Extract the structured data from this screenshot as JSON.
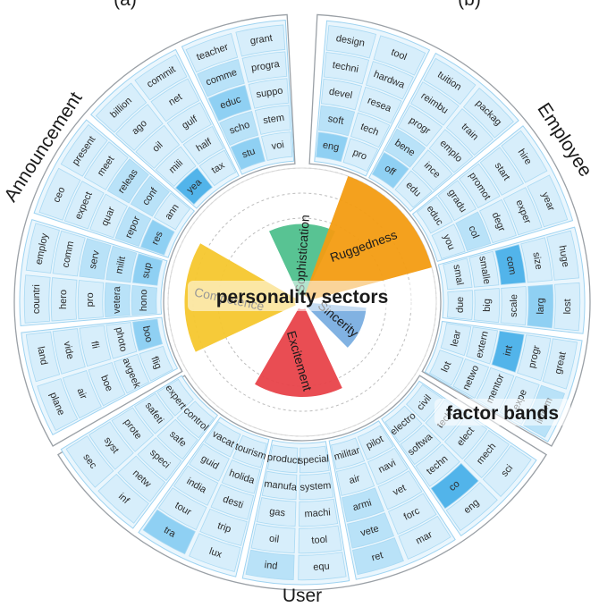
{
  "figure": {
    "panel_letters": [
      "(a)",
      "(b)"
    ],
    "group_labels": [
      "Announcement",
      "Employee",
      "User"
    ],
    "overlay_labels": {
      "center": "personality sectors",
      "bands": "factor bands"
    }
  },
  "sectors": [
    {
      "name": "Sophistication",
      "color": "#4fc08d",
      "value": 0.56
    },
    {
      "name": "Ruggedness",
      "color": "#f39c12",
      "value": 1.0
    },
    {
      "name": "Sincerity",
      "color": "#7aaee0",
      "value": 0.45
    },
    {
      "name": "Excitement",
      "color": "#e8434a",
      "value": 0.69
    },
    {
      "name": "Competence",
      "color": "#f6c72e",
      "value": 0.87
    }
  ],
  "groups": [
    {
      "name": "Announcement",
      "bands": [
        {
          "cells": [
            {
              "text": "plane"
            },
            {
              "text": "land"
            },
            {
              "text": "air"
            },
            {
              "text": "vide"
            },
            {
              "text": "boe"
            },
            {
              "text": "fli"
            },
            {
              "text": "avgeek"
            },
            {
              "text": "photo"
            },
            {
              "text": "flig"
            },
            {
              "text": "boo"
            }
          ]
        },
        {
          "cells": [
            {
              "text": "countri"
            },
            {
              "text": "employ"
            },
            {
              "text": "hero"
            },
            {
              "text": "comm"
            },
            {
              "text": "pro"
            },
            {
              "text": "serv"
            },
            {
              "text": "vetera"
            },
            {
              "text": "milit"
            },
            {
              "text": "hono"
            },
            {
              "text": "sup"
            }
          ]
        },
        {
          "cells": [
            {
              "text": "ceo"
            },
            {
              "text": "present"
            },
            {
              "text": "expect"
            },
            {
              "text": "meet"
            },
            {
              "text": "quar"
            },
            {
              "text": "releas"
            },
            {
              "text": "repor"
            },
            {
              "text": "conf"
            },
            {
              "text": "res"
            },
            {
              "text": "ann"
            }
          ]
        },
        {
          "cells": [
            {
              "text": "billion"
            },
            {
              "text": "commit"
            },
            {
              "text": "ago"
            },
            {
              "text": "net"
            },
            {
              "text": "oil"
            },
            {
              "text": "gulf"
            },
            {
              "text": "mili"
            },
            {
              "text": "half"
            },
            {
              "text": "yea"
            },
            {
              "text": "tax"
            }
          ]
        },
        {
          "cells": [
            {
              "text": "teacher"
            },
            {
              "text": "grant"
            },
            {
              "text": "comme"
            },
            {
              "text": "progra"
            },
            {
              "text": "educ"
            },
            {
              "text": "suppo"
            },
            {
              "text": "scho"
            },
            {
              "text": "stem"
            },
            {
              "text": "stu"
            },
            {
              "text": "voi"
            }
          ]
        }
      ]
    },
    {
      "name": "Employee",
      "bands": [
        {
          "cells": [
            {
              "text": "design"
            },
            {
              "text": "tool"
            },
            {
              "text": "techni"
            },
            {
              "text": "hardwa"
            },
            {
              "text": "devel"
            },
            {
              "text": "resea"
            },
            {
              "text": "soft"
            },
            {
              "text": "tech"
            },
            {
              "text": "eng"
            },
            {
              "text": "pro"
            }
          ]
        },
        {
          "cells": [
            {
              "text": "tuition"
            },
            {
              "text": "packag"
            },
            {
              "text": "reimbu"
            },
            {
              "text": "train"
            },
            {
              "text": "progr"
            },
            {
              "text": "emplo"
            },
            {
              "text": "bene"
            },
            {
              "text": "ince"
            },
            {
              "text": "off"
            },
            {
              "text": "edu"
            }
          ]
        },
        {
          "cells": [
            {
              "text": "hire"
            },
            {
              "text": "year"
            },
            {
              "text": "start"
            },
            {
              "text": "exper"
            },
            {
              "text": "promot"
            },
            {
              "text": "degr"
            },
            {
              "text": "gradu"
            },
            {
              "text": "col"
            },
            {
              "text": "educ"
            },
            {
              "text": "you"
            }
          ]
        },
        {
          "cells": [
            {
              "text": "huge"
            },
            {
              "text": "lost"
            },
            {
              "text": "size"
            },
            {
              "text": "larg"
            },
            {
              "text": "com"
            },
            {
              "text": "scale"
            },
            {
              "text": "smalle"
            },
            {
              "text": "big"
            },
            {
              "text": "smal"
            },
            {
              "text": "due"
            }
          ]
        },
        {
          "cells": [
            {
              "text": "great"
            },
            {
              "text": "interm"
            },
            {
              "text": "progr"
            },
            {
              "text": "expe"
            },
            {
              "text": "int"
            },
            {
              "text": "mentor"
            },
            {
              "text": "extern"
            },
            {
              "text": "netwo"
            },
            {
              "text": "lear"
            },
            {
              "text": "lot"
            }
          ]
        }
      ]
    },
    {
      "name": "User",
      "bands": [
        {
          "cells": [
            {
              "text": "sci"
            },
            {
              "text": "eng"
            },
            {
              "text": "mech"
            },
            {
              "text": "co"
            },
            {
              "text": "elect"
            },
            {
              "text": "techn"
            },
            {
              "text": "tech"
            },
            {
              "text": "softwa"
            },
            {
              "text": "civil"
            },
            {
              "text": "electro"
            }
          ]
        },
        {
          "cells": [
            {
              "text": "mar"
            },
            {
              "text": "ret"
            },
            {
              "text": "forc"
            },
            {
              "text": "vete"
            },
            {
              "text": "vet"
            },
            {
              "text": "armi"
            },
            {
              "text": "navi"
            },
            {
              "text": "air"
            },
            {
              "text": "pilot"
            },
            {
              "text": "militar"
            }
          ]
        },
        {
          "cells": [
            {
              "text": "equ"
            },
            {
              "text": "ind"
            },
            {
              "text": "tool"
            },
            {
              "text": "oil"
            },
            {
              "text": "machi"
            },
            {
              "text": "gas"
            },
            {
              "text": "system"
            },
            {
              "text": "manufa"
            },
            {
              "text": "special"
            },
            {
              "text": "product"
            }
          ]
        },
        {
          "cells": [
            {
              "text": "lux"
            },
            {
              "text": "tra"
            },
            {
              "text": "trip"
            },
            {
              "text": "tour"
            },
            {
              "text": "desti"
            },
            {
              "text": "india"
            },
            {
              "text": "holida"
            },
            {
              "text": "guid"
            },
            {
              "text": "tourism"
            },
            {
              "text": "vacat"
            }
          ]
        },
        {
          "cells": [
            {
              "text": "inf"
            },
            {
              "text": "sec"
            },
            {
              "text": "netw"
            },
            {
              "text": "syst"
            },
            {
              "text": "speci"
            },
            {
              "text": "prote"
            },
            {
              "text": "safe"
            },
            {
              "text": "safeti"
            },
            {
              "text": "control"
            },
            {
              "text": "expert"
            }
          ]
        }
      ]
    }
  ],
  "highlight_levels": {
    "Announcement": [
      [
        0,
        0,
        0,
        0,
        0,
        0,
        0,
        0,
        0,
        2
      ],
      [
        0,
        0,
        0,
        0,
        0,
        1,
        1,
        1,
        1,
        2
      ],
      [
        0,
        0,
        0,
        0,
        0,
        1,
        1,
        1,
        2,
        0
      ],
      [
        0,
        0,
        0,
        0,
        0,
        0,
        0,
        0,
        3,
        0
      ],
      [
        0,
        0,
        1,
        0,
        2,
        0,
        1,
        0,
        2,
        0
      ]
    ],
    "Employee": [
      [
        0,
        0,
        0,
        0,
        0,
        0,
        1,
        0,
        2,
        0
      ],
      [
        0,
        0,
        0,
        0,
        0,
        0,
        1,
        0,
        2,
        0
      ],
      [
        0,
        0,
        0,
        0,
        0,
        0,
        0,
        1,
        0,
        0
      ],
      [
        0,
        0,
        0,
        2,
        3,
        0,
        0,
        0,
        0,
        0
      ],
      [
        0,
        1,
        0,
        0,
        3,
        0,
        0,
        0,
        0,
        0
      ]
    ],
    "User": [
      [
        0,
        0,
        0,
        3,
        0,
        0,
        0,
        0,
        0,
        0
      ],
      [
        0,
        1,
        0,
        1,
        0,
        1,
        0,
        0,
        0,
        0
      ],
      [
        0,
        1,
        0,
        0,
        0,
        0,
        0,
        0,
        0,
        0
      ],
      [
        0,
        2,
        0,
        0,
        0,
        0,
        0,
        0,
        0,
        0
      ],
      [
        0,
        0,
        0,
        0,
        0,
        0,
        0,
        0,
        0,
        0
      ]
    ]
  }
}
